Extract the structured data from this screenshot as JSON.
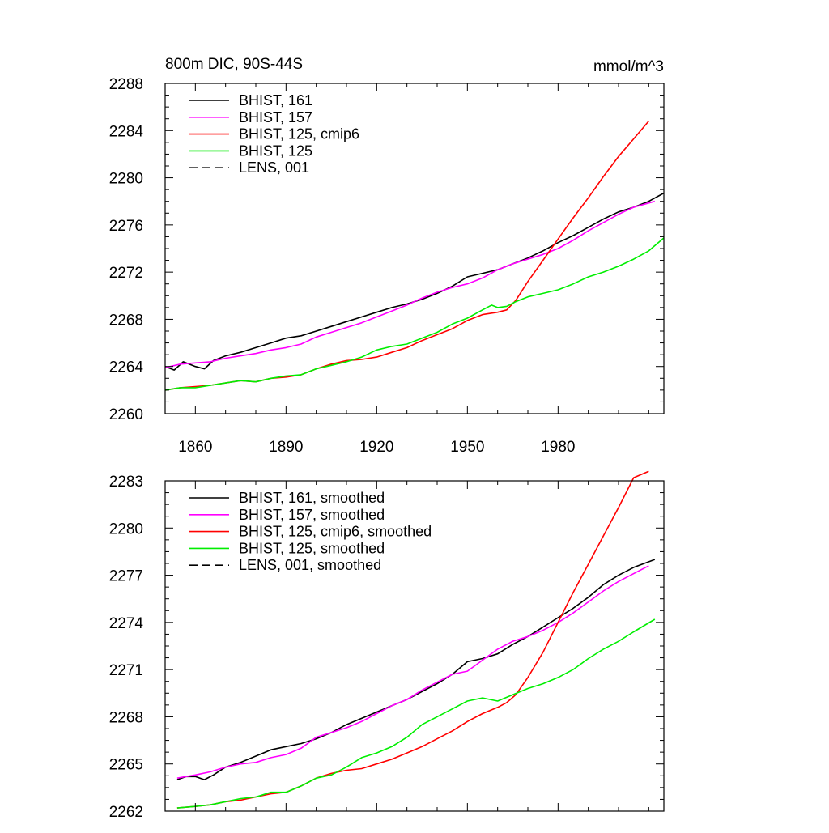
{
  "chart_data": [
    {
      "type": "line",
      "title_left": "800m DIC, 90S-44S",
      "title_right": "mmol/m^3",
      "xlim": [
        1850,
        2015
      ],
      "ylim": [
        2260,
        2288
      ],
      "x_ticks": [
        1860,
        1890,
        1920,
        1950,
        1980
      ],
      "x_tick_labels": [
        "1860",
        "1890",
        "1920",
        "1950",
        "1980"
      ],
      "y_ticks": [
        2260,
        2264,
        2268,
        2272,
        2276,
        2280,
        2284,
        2288
      ],
      "y_tick_labels": [
        "2260",
        "2264",
        "2268",
        "2272",
        "2276",
        "2280",
        "2284",
        "2288"
      ],
      "legend": [
        "BHIST, 161",
        "BHIST, 157",
        "BHIST, 125, cmip6",
        "BHIST, 125",
        "LENS, 001"
      ],
      "legend_position": "top-left",
      "series": [
        {
          "name": "BHIST, 161",
          "color": "#000000",
          "dash": "solid",
          "x": [
            1850,
            1853,
            1856,
            1860,
            1863,
            1866,
            1870,
            1875,
            1880,
            1885,
            1890,
            1895,
            1900,
            1905,
            1910,
            1915,
            1920,
            1925,
            1930,
            1935,
            1940,
            1945,
            1950,
            1955,
            1960,
            1965,
            1970,
            1975,
            1980,
            1985,
            1990,
            1995,
            2000,
            2005,
            2010,
            2015
          ],
          "y": [
            2264.0,
            2263.7,
            2264.4,
            2264.0,
            2263.8,
            2264.5,
            2264.9,
            2265.2,
            2265.6,
            2266.0,
            2266.4,
            2266.6,
            2267.0,
            2267.4,
            2267.8,
            2268.2,
            2268.6,
            2269.0,
            2269.3,
            2269.7,
            2270.2,
            2270.8,
            2271.6,
            2271.9,
            2272.2,
            2272.7,
            2273.2,
            2273.8,
            2274.5,
            2275.1,
            2275.8,
            2276.5,
            2277.1,
            2277.5,
            2278.0,
            2278.7
          ]
        },
        {
          "name": "BHIST, 157",
          "color": "#ff00ff",
          "dash": "solid",
          "x": [
            1850,
            1855,
            1860,
            1865,
            1870,
            1875,
            1880,
            1885,
            1890,
            1895,
            1900,
            1905,
            1910,
            1915,
            1920,
            1925,
            1930,
            1935,
            1940,
            1945,
            1950,
            1955,
            1960,
            1965,
            1970,
            1975,
            1980,
            1985,
            1990,
            1995,
            2000,
            2005,
            2012
          ],
          "y": [
            2263.9,
            2264.2,
            2264.3,
            2264.4,
            2264.7,
            2264.9,
            2265.1,
            2265.4,
            2265.6,
            2265.9,
            2266.5,
            2266.9,
            2267.3,
            2267.7,
            2268.2,
            2268.7,
            2269.2,
            2269.8,
            2270.3,
            2270.7,
            2271.0,
            2271.5,
            2272.2,
            2272.7,
            2273.1,
            2273.5,
            2274.0,
            2274.7,
            2275.5,
            2276.2,
            2276.9,
            2277.5,
            2278.0
          ]
        },
        {
          "name": "BHIST, 125, cmip6",
          "color": "#ff0000",
          "dash": "solid",
          "x": [
            1850,
            1855,
            1860,
            1865,
            1870,
            1875,
            1880,
            1885,
            1890,
            1895,
            1900,
            1905,
            1910,
            1915,
            1920,
            1925,
            1930,
            1935,
            1940,
            1945,
            1950,
            1955,
            1960,
            1963,
            1966,
            1970,
            1975,
            1980,
            1985,
            1990,
            1995,
            2000,
            2005,
            2010
          ],
          "y": [
            2262.0,
            2262.2,
            2262.3,
            2262.4,
            2262.6,
            2262.8,
            2262.7,
            2263.0,
            2263.1,
            2263.3,
            2263.8,
            2264.2,
            2264.5,
            2264.6,
            2264.8,
            2265.2,
            2265.6,
            2266.2,
            2266.7,
            2267.2,
            2267.9,
            2268.4,
            2268.6,
            2268.8,
            2269.6,
            2271.2,
            2273.0,
            2274.8,
            2276.6,
            2278.3,
            2280.1,
            2281.8,
            2283.3,
            2284.8
          ]
        },
        {
          "name": "BHIST, 125",
          "color": "#00ee00",
          "dash": "solid",
          "x": [
            1850,
            1855,
            1860,
            1865,
            1870,
            1875,
            1880,
            1885,
            1890,
            1895,
            1900,
            1905,
            1910,
            1915,
            1920,
            1925,
            1930,
            1935,
            1940,
            1945,
            1950,
            1955,
            1958,
            1960,
            1963,
            1966,
            1970,
            1975,
            1980,
            1985,
            1990,
            1995,
            2000,
            2005,
            2010,
            2015
          ],
          "y": [
            2262.0,
            2262.2,
            2262.2,
            2262.4,
            2262.6,
            2262.8,
            2262.7,
            2263.0,
            2263.2,
            2263.3,
            2263.8,
            2264.1,
            2264.4,
            2264.8,
            2265.4,
            2265.7,
            2265.9,
            2266.4,
            2266.9,
            2267.6,
            2268.1,
            2268.8,
            2269.2,
            2269.0,
            2269.1,
            2269.5,
            2269.9,
            2270.2,
            2270.5,
            2271.0,
            2271.6,
            2272.0,
            2272.5,
            2273.1,
            2273.8,
            2274.9
          ]
        },
        {
          "name": "LENS, 001",
          "color": "#000000",
          "dash": "dashed",
          "x": [],
          "y": []
        }
      ]
    },
    {
      "type": "line",
      "title_left": "",
      "title_right": "",
      "xlim": [
        1850,
        2015
      ],
      "ylim": [
        2262,
        2283
      ],
      "x_ticks": [
        1860,
        1890,
        1920,
        1950,
        1980
      ],
      "x_tick_labels": [],
      "y_ticks": [
        2262,
        2265,
        2268,
        2271,
        2274,
        2277,
        2280,
        2283
      ],
      "y_tick_labels": [
        "2262",
        "2265",
        "2268",
        "2271",
        "2274",
        "2277",
        "2280",
        "2283"
      ],
      "legend": [
        "BHIST, 161, smoothed",
        "BHIST, 157, smoothed",
        "BHIST, 125, cmip6, smoothed",
        "BHIST, 125, smoothed",
        "LENS, 001, smoothed"
      ],
      "legend_position": "top-left",
      "series": [
        {
          "name": "BHIST, 161, smoothed",
          "color": "#000000",
          "dash": "solid",
          "x": [
            1854,
            1857,
            1860,
            1863,
            1866,
            1870,
            1875,
            1880,
            1885,
            1890,
            1895,
            1900,
            1905,
            1910,
            1915,
            1920,
            1925,
            1930,
            1935,
            1940,
            1945,
            1950,
            1955,
            1960,
            1965,
            1970,
            1975,
            1980,
            1985,
            1990,
            1995,
            2000,
            2005,
            2012
          ],
          "y": [
            2264.0,
            2264.2,
            2264.2,
            2264.0,
            2264.3,
            2264.8,
            2265.1,
            2265.5,
            2265.9,
            2266.1,
            2266.3,
            2266.6,
            2267.0,
            2267.5,
            2267.9,
            2268.3,
            2268.7,
            2269.1,
            2269.6,
            2270.1,
            2270.7,
            2271.5,
            2271.7,
            2272.0,
            2272.6,
            2273.1,
            2273.7,
            2274.3,
            2274.9,
            2275.6,
            2276.4,
            2277.0,
            2277.5,
            2278.0
          ]
        },
        {
          "name": "BHIST, 157, smoothed",
          "color": "#ff00ff",
          "dash": "solid",
          "x": [
            1854,
            1860,
            1865,
            1870,
            1875,
            1880,
            1885,
            1890,
            1895,
            1900,
            1905,
            1910,
            1915,
            1920,
            1925,
            1930,
            1935,
            1940,
            1945,
            1950,
            1955,
            1960,
            1965,
            1970,
            1975,
            1980,
            1985,
            1990,
            1995,
            2000,
            2005,
            2010
          ],
          "y": [
            2264.1,
            2264.3,
            2264.5,
            2264.8,
            2265.0,
            2265.1,
            2265.4,
            2265.6,
            2266.0,
            2266.7,
            2267.0,
            2267.3,
            2267.7,
            2268.2,
            2268.7,
            2269.1,
            2269.7,
            2270.2,
            2270.7,
            2270.9,
            2271.6,
            2272.3,
            2272.8,
            2273.1,
            2273.5,
            2274.0,
            2274.6,
            2275.3,
            2276.0,
            2276.6,
            2277.1,
            2277.6
          ]
        },
        {
          "name": "BHIST, 125, cmip6, smoothed",
          "color": "#ff0000",
          "dash": "solid",
          "x": [
            1854,
            1860,
            1865,
            1870,
            1875,
            1880,
            1885,
            1890,
            1895,
            1900,
            1905,
            1910,
            1915,
            1920,
            1925,
            1930,
            1935,
            1940,
            1945,
            1950,
            1955,
            1960,
            1963,
            1966,
            1970,
            1975,
            1980,
            1985,
            1990,
            1995,
            2000,
            2005,
            2010
          ],
          "y": [
            2262.2,
            2262.3,
            2262.4,
            2262.6,
            2262.7,
            2262.9,
            2263.1,
            2263.2,
            2263.6,
            2264.1,
            2264.4,
            2264.6,
            2264.7,
            2265.0,
            2265.3,
            2265.7,
            2266.1,
            2266.6,
            2267.1,
            2267.7,
            2268.2,
            2268.6,
            2268.9,
            2269.4,
            2270.5,
            2272.1,
            2274.0,
            2275.9,
            2277.7,
            2279.5,
            2281.3,
            2283.2,
            2283.6
          ]
        },
        {
          "name": "BHIST, 125, smoothed",
          "color": "#00ee00",
          "dash": "solid",
          "x": [
            1854,
            1860,
            1865,
            1870,
            1875,
            1880,
            1885,
            1890,
            1895,
            1900,
            1905,
            1910,
            1915,
            1920,
            1925,
            1930,
            1935,
            1940,
            1945,
            1950,
            1955,
            1960,
            1965,
            1970,
            1975,
            1980,
            1985,
            1990,
            1995,
            2000,
            2005,
            2012
          ],
          "y": [
            2262.2,
            2262.3,
            2262.4,
            2262.6,
            2262.8,
            2262.9,
            2263.2,
            2263.2,
            2263.6,
            2264.1,
            2264.3,
            2264.8,
            2265.4,
            2265.7,
            2266.1,
            2266.7,
            2267.5,
            2268.0,
            2268.5,
            2269.0,
            2269.2,
            2269.0,
            2269.4,
            2269.8,
            2270.1,
            2270.5,
            2271.0,
            2271.7,
            2272.3,
            2272.8,
            2273.4,
            2274.2
          ]
        },
        {
          "name": "LENS, 001, smoothed",
          "color": "#000000",
          "dash": "dashed",
          "x": [],
          "y": []
        }
      ]
    }
  ]
}
